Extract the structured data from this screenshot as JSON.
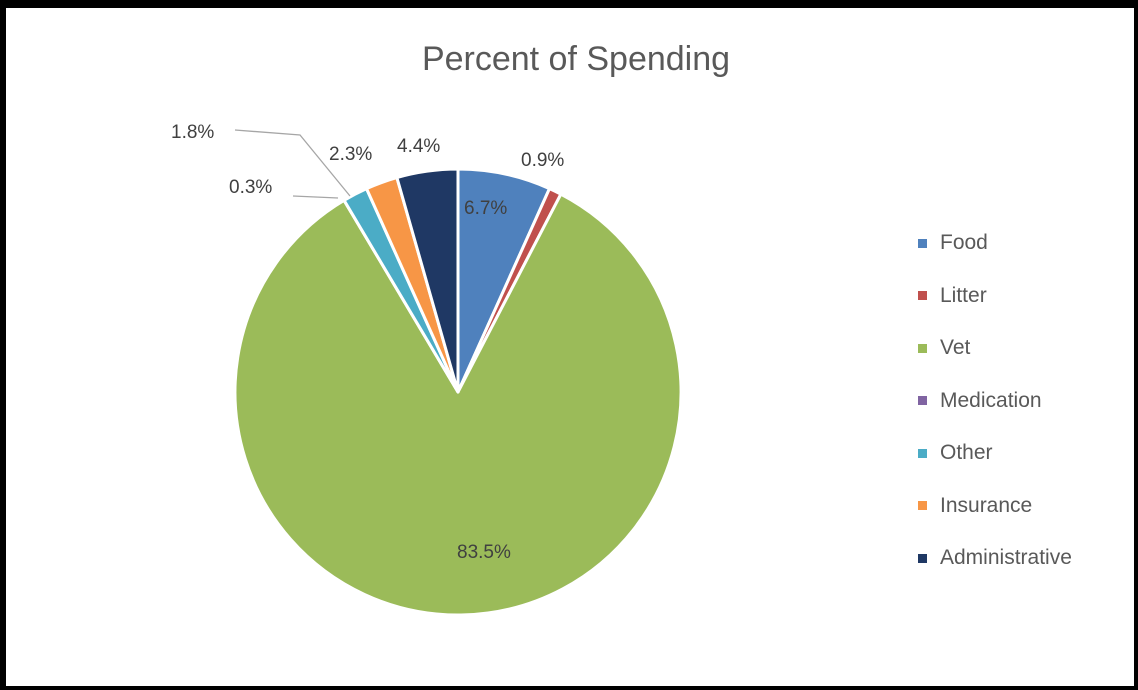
{
  "chart_data": {
    "type": "pie",
    "title": "Percent of Spending",
    "legend_position": "right",
    "slices": [
      {
        "name": "Food",
        "value": 6.7,
        "label": "6.7%",
        "color": "#4f81bd"
      },
      {
        "name": "Litter",
        "value": 0.9,
        "label": "0.9%",
        "color": "#c0504d"
      },
      {
        "name": "Vet",
        "value": 83.5,
        "label": "83.5%",
        "color": "#9bbb59"
      },
      {
        "name": "Medication",
        "value": 0.0,
        "label": "",
        "color": "#8064a2"
      },
      {
        "name": "Other",
        "value": 1.8,
        "label": "1.8%",
        "color": "#4bacc6"
      },
      {
        "name": "Insurance",
        "value": 2.3,
        "label": "2.3%",
        "color": "#f79646"
      },
      {
        "name": "Administrative",
        "value": 4.4,
        "label": "4.4%",
        "color": "#1f3864"
      }
    ],
    "extra_labels": [
      "0.3%"
    ]
  }
}
